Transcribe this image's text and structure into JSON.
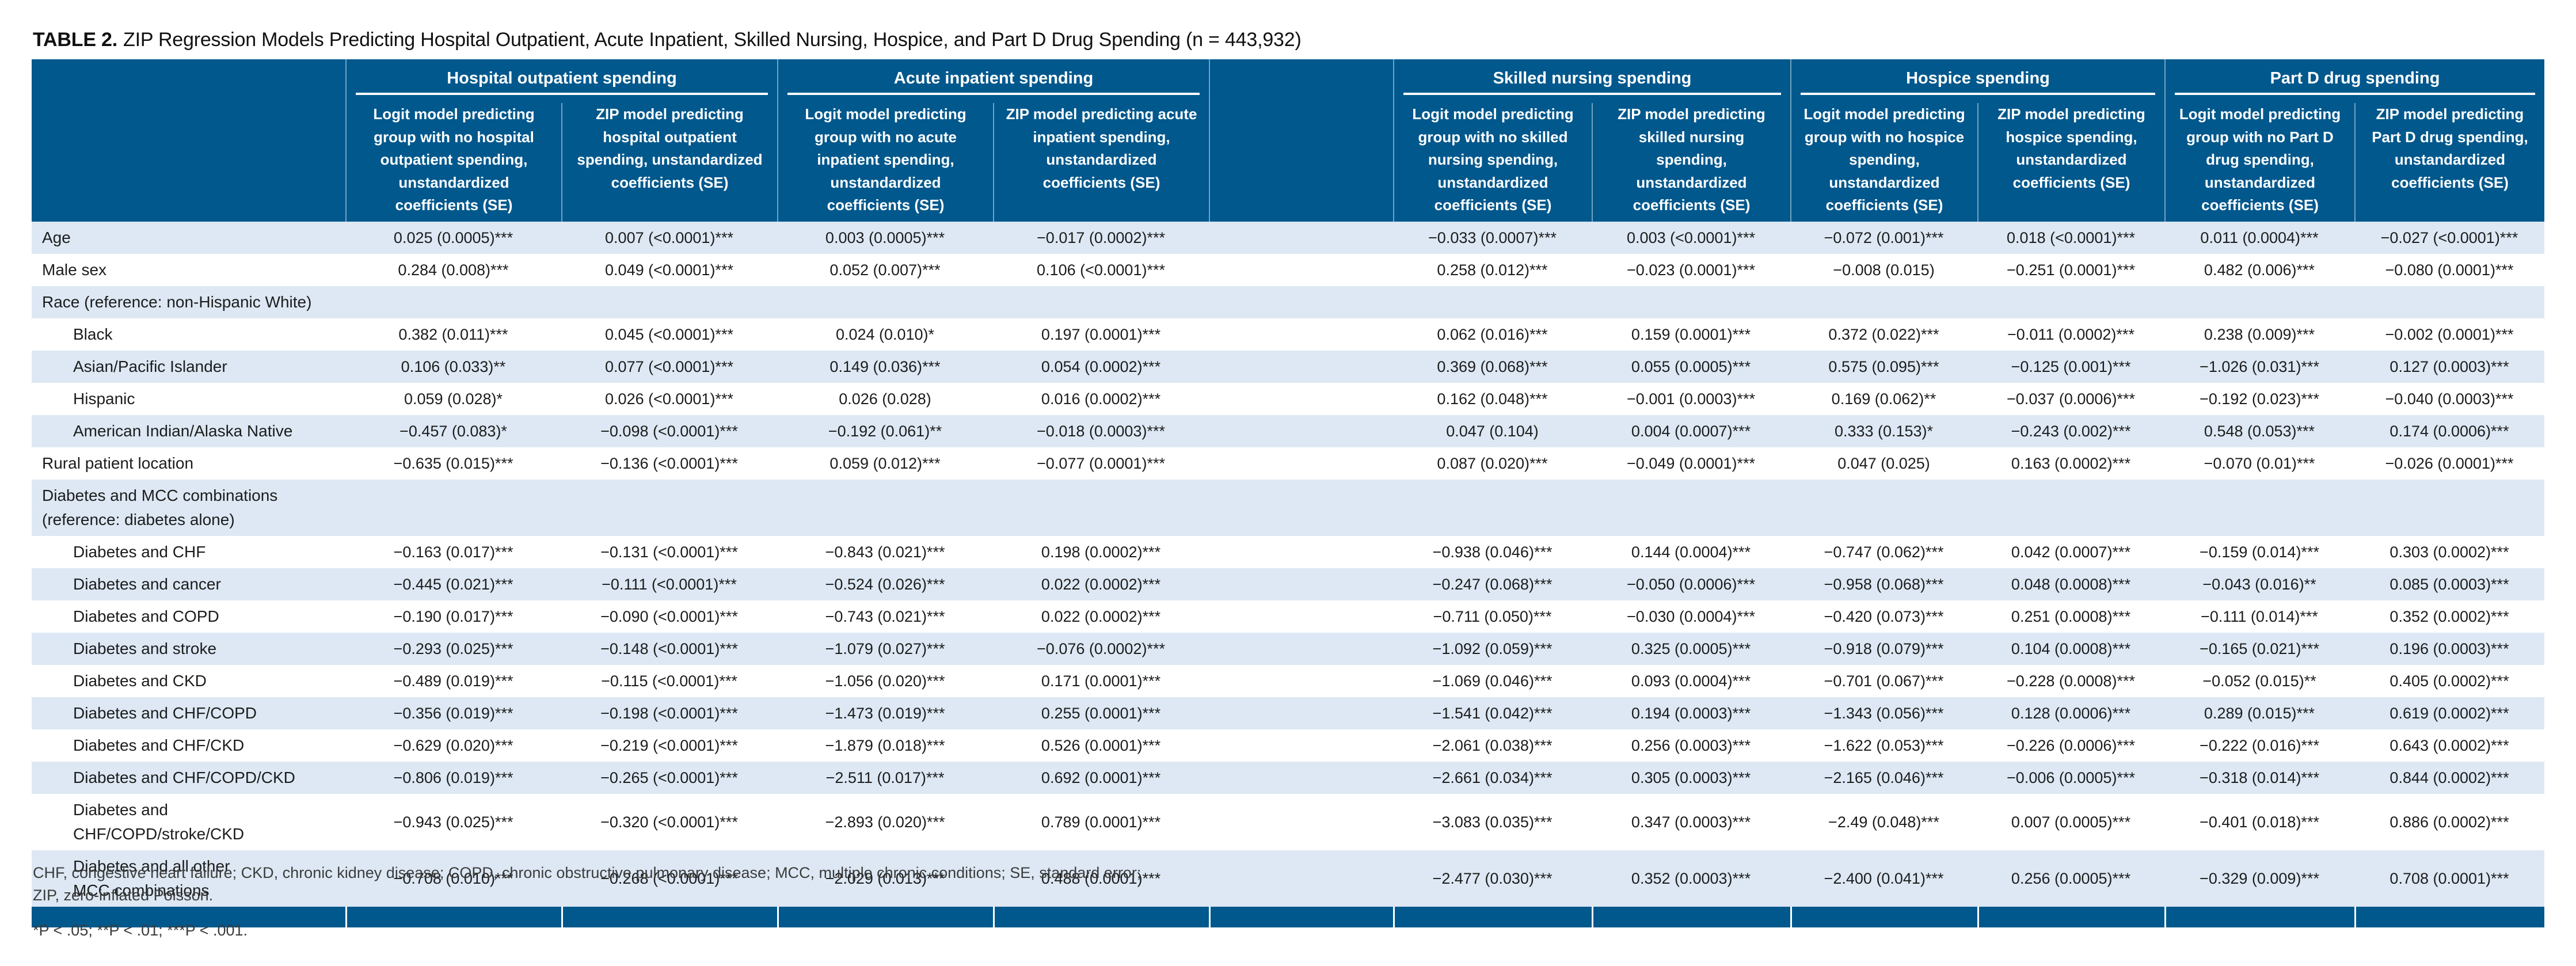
{
  "title": {
    "label": "TABLE 2.",
    "text": "ZIP Regression Models Predicting Hospital Outpatient, Acute Inpatient, Skilled Nursing, Hospice, and Part D Drug Spending (n = 443,932)"
  },
  "colors": {
    "header_blue": "#00588d",
    "row_stripe": "#dde8f4",
    "text": "#1c1c1c"
  },
  "groups": [
    {
      "label": "Hospital outpatient spending",
      "sub": [
        "Logit model predicting group with no hospital outpatient spending, unstandardized coefficients (SE)",
        "ZIP model predicting hospital outpatient spending, unstandardized coefficients (SE)"
      ]
    },
    {
      "label": "Acute inpatient spending",
      "sub": [
        "Logit model predicting group with no acute inpatient spending, unstandardized coefficients (SE)",
        "ZIP model predicting acute inpatient spending, unstandardized coefficients (SE)"
      ]
    },
    {
      "label": "Skilled nursing spending",
      "sub": [
        "Logit model predicting group with no skilled nursing spending, unstandardized coefficients (SE)",
        "ZIP model predicting skilled nursing spending, unstandardized coefficients (SE)"
      ]
    },
    {
      "label": "Hospice spending",
      "sub": [
        "Logit model predicting group with no hospice spending, unstandardized coefficients (SE)",
        "ZIP model predicting hospice spending, unstandardized coefficients (SE)"
      ]
    },
    {
      "label": "Part D drug spending",
      "sub": [
        "Logit model predicting group with no Part D drug spending, unstandardized coefficients (SE)",
        "ZIP model predicting Part D drug spending, unstandardized coefficients (SE)"
      ]
    }
  ],
  "rows": [
    {
      "label": "Age",
      "type": "data",
      "indent": false,
      "values": [
        "0.025 (0.0005)***",
        "0.007 (<0.0001)***",
        "0.003 (0.0005)***",
        "−0.017 (0.0002)***",
        "−0.033 (0.0007)***",
        "0.003 (<0.0001)***",
        "−0.072 (0.001)***",
        "0.018 (<0.0001)***",
        "0.011 (0.0004)***",
        "−0.027 (<0.0001)***"
      ]
    },
    {
      "label": "Male sex",
      "type": "data",
      "indent": false,
      "values": [
        "0.284 (0.008)***",
        "0.049 (<0.0001)***",
        "0.052 (0.007)***",
        "0.106 (<0.0001)***",
        "0.258 (0.012)***",
        "−0.023 (0.0001)***",
        "−0.008 (0.015)",
        "−0.251 (0.0001)***",
        "0.482 (0.006)***",
        "−0.080 (0.0001)***"
      ]
    },
    {
      "label": "Race (reference: non-Hispanic White)",
      "type": "section",
      "indent": false,
      "values": []
    },
    {
      "label": "Black",
      "type": "data",
      "indent": true,
      "values": [
        "0.382 (0.011)***",
        "0.045 (<0.0001)***",
        "0.024 (0.010)*",
        "0.197 (0.0001)***",
        "0.062 (0.016)***",
        "0.159 (0.0001)***",
        "0.372 (0.022)***",
        "−0.011 (0.0002)***",
        "0.238 (0.009)***",
        "−0.002 (0.0001)***"
      ]
    },
    {
      "label": "Asian/Pacific Islander",
      "type": "data",
      "indent": true,
      "values": [
        "0.106 (0.033)**",
        "0.077 (<0.0001)***",
        "0.149 (0.036)***",
        "0.054 (0.0002)***",
        "0.369 (0.068)***",
        "0.055 (0.0005)***",
        "0.575 (0.095)***",
        "−0.125 (0.001)***",
        "−1.026 (0.031)***",
        "0.127 (0.0003)***"
      ]
    },
    {
      "label": "Hispanic",
      "type": "data",
      "indent": true,
      "values": [
        "0.059 (0.028)*",
        "0.026 (<0.0001)***",
        "0.026 (0.028)",
        "0.016 (0.0002)***",
        "0.162 (0.048)***",
        "−0.001 (0.0003)***",
        "0.169 (0.062)**",
        "−0.037 (0.0006)***",
        "−0.192 (0.023)***",
        "−0.040 (0.0003)***"
      ]
    },
    {
      "label": "American Indian/Alaska Native",
      "type": "data",
      "indent": true,
      "values": [
        "−0.457 (0.083)*",
        "−0.098 (<0.0001)***",
        "−0.192 (0.061)**",
        "−0.018 (0.0003)***",
        "0.047 (0.104)",
        "0.004 (0.0007)***",
        "0.333 (0.153)*",
        "−0.243 (0.002)***",
        "0.548 (0.053)***",
        "0.174 (0.0006)***"
      ]
    },
    {
      "label": "Rural patient location",
      "type": "data",
      "indent": false,
      "values": [
        "−0.635 (0.015)***",
        "−0.136 (<0.0001)***",
        "0.059 (0.012)***",
        "−0.077 (0.0001)***",
        "0.087 (0.020)***",
        "−0.049 (0.0001)***",
        "0.047 (0.025)",
        "0.163 (0.0002)***",
        "−0.070 (0.01)***",
        "−0.026 (0.0001)***"
      ]
    },
    {
      "label": "Diabetes and MCC combinations\n(reference: diabetes alone)",
      "type": "section",
      "indent": false,
      "values": []
    },
    {
      "label": "Diabetes and CHF",
      "type": "data",
      "indent": true,
      "values": [
        "−0.163 (0.017)***",
        "−0.131 (<0.0001)***",
        "−0.843 (0.021)***",
        "0.198 (0.0002)***",
        "−0.938 (0.046)***",
        "0.144 (0.0004)***",
        "−0.747 (0.062)***",
        "0.042 (0.0007)***",
        "−0.159 (0.014)***",
        "0.303 (0.0002)***"
      ]
    },
    {
      "label": "Diabetes and cancer",
      "type": "data",
      "indent": true,
      "values": [
        "−0.445 (0.021)***",
        "−0.111 (<0.0001)***",
        "−0.524 (0.026)***",
        "0.022 (0.0002)***",
        "−0.247 (0.068)***",
        "−0.050 (0.0006)***",
        "−0.958 (0.068)***",
        "0.048 (0.0008)***",
        "−0.043 (0.016)**",
        "0.085 (0.0003)***"
      ]
    },
    {
      "label": "Diabetes and COPD",
      "type": "data",
      "indent": true,
      "values": [
        "−0.190 (0.017)***",
        "−0.090 (<0.0001)***",
        "−0.743 (0.021)***",
        "0.022 (0.0002)***",
        "−0.711 (0.050)***",
        "−0.030 (0.0004)***",
        "−0.420 (0.073)***",
        "0.251 (0.0008)***",
        "−0.111 (0.014)***",
        "0.352 (0.0002)***"
      ]
    },
    {
      "label": "Diabetes and stroke",
      "type": "data",
      "indent": true,
      "values": [
        "−0.293 (0.025)***",
        "−0.148 (<0.0001)***",
        "−1.079 (0.027)***",
        "−0.076 (0.0002)***",
        "−1.092 (0.059)***",
        "0.325 (0.0005)***",
        "−0.918 (0.079)***",
        "0.104 (0.0008)***",
        "−0.165 (0.021)***",
        "0.196 (0.0003)***"
      ]
    },
    {
      "label": "Diabetes and CKD",
      "type": "data",
      "indent": true,
      "values": [
        "−0.489 (0.019)***",
        "−0.115 (<0.0001)***",
        "−1.056 (0.020)***",
        "0.171 (0.0001)***",
        "−1.069 (0.046)***",
        "0.093 (0.0004)***",
        "−0.701 (0.067)***",
        "−0.228 (0.0008)***",
        "−0.052 (0.015)**",
        "0.405 (0.0002)***"
      ]
    },
    {
      "label": "Diabetes and CHF/COPD",
      "type": "data",
      "indent": true,
      "values": [
        "−0.356 (0.019)***",
        "−0.198 (<0.0001)***",
        "−1.473 (0.019)***",
        "0.255 (0.0001)***",
        "−1.541 (0.042)***",
        "0.194 (0.0003)***",
        "−1.343 (0.056)***",
        "0.128 (0.0006)***",
        "0.289 (0.015)***",
        "0.619 (0.0002)***"
      ]
    },
    {
      "label": "Diabetes and CHF/CKD",
      "type": "data",
      "indent": true,
      "values": [
        "−0.629 (0.020)***",
        "−0.219 (<0.0001)***",
        "−1.879 (0.018)***",
        "0.526 (0.0001)***",
        "−2.061 (0.038)***",
        "0.256 (0.0003)***",
        "−1.622 (0.053)***",
        "−0.226 (0.0006)***",
        "−0.222 (0.016)***",
        "0.643 (0.0002)***"
      ]
    },
    {
      "label": "Diabetes and CHF/COPD/CKD",
      "type": "data",
      "indent": true,
      "values": [
        "−0.806 (0.019)***",
        "−0.265 (<0.0001)***",
        "−2.511 (0.017)***",
        "0.692 (0.0001)***",
        "−2.661 (0.034)***",
        "0.305 (0.0003)***",
        "−2.165 (0.046)***",
        "−0.006 (0.0005)***",
        "−0.318 (0.014)***",
        "0.844 (0.0002)***"
      ]
    },
    {
      "label": "Diabetes and CHF/COPD/stroke/CKD",
      "type": "data",
      "indent": true,
      "values": [
        "−0.943 (0.025)***",
        "−0.320 (<0.0001)***",
        "−2.893 (0.020)***",
        "0.789 (0.0001)***",
        "−3.083 (0.035)***",
        "0.347 (0.0003)***",
        "−2.49 (0.048)***",
        "0.007 (0.0005)***",
        "−0.401 (0.018)***",
        "0.886 (0.0002)***"
      ]
    },
    {
      "label": "Diabetes and all other\nMCC combinations",
      "type": "data",
      "indent": true,
      "values": [
        "−0.708 (0.010)***",
        "−0.268 (<0.0001)***",
        "−2.029 (0.013)***",
        "0.488 (0.0001)***",
        "−2.477 (0.030)***",
        "0.352 (0.0003)***",
        "−2.400 (0.041)***",
        "0.256 (0.0005)***",
        "−0.329 (0.009)***",
        "0.708 (0.0001)***"
      ]
    }
  ],
  "footnotes": [
    "CHF, congestive heart failure; CKD, chronic kidney disease; COPD, chronic obstructive pulmonary disease; MCC, multiple chronic conditions; SE, standard error;",
    "ZIP, zero-inflated Poisson.",
    "*P < .05; **P < .01; ***P < .001."
  ]
}
